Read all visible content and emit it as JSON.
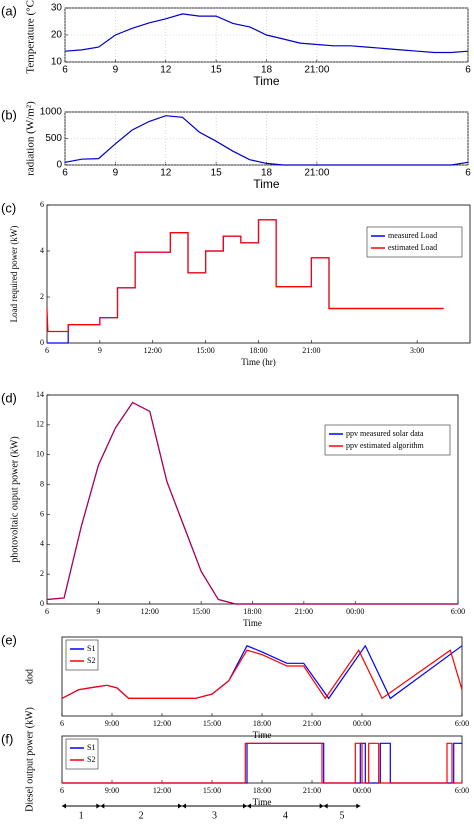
{
  "chart_data": [
    {
      "type": "line",
      "panel_label": "(a)",
      "ylabel": "Temperature (°C)",
      "xlabel": "Time",
      "grid": true,
      "x": [
        6,
        7,
        8,
        9,
        10,
        11,
        12,
        13,
        14,
        15,
        16,
        17,
        18,
        19,
        20,
        21,
        22,
        23,
        24,
        25,
        26,
        27,
        28,
        29,
        30
      ],
      "series": [
        {
          "name": null,
          "color": "#0000cc",
          "values": [
            14,
            14.5,
            15.5,
            20,
            22.5,
            24.5,
            26,
            27.8,
            27,
            27,
            24.3,
            23,
            20,
            18.5,
            17,
            16.5,
            16,
            16,
            15.5,
            15,
            14.5,
            14,
            13.5,
            13.5,
            14
          ]
        }
      ],
      "xlim": [
        6,
        30
      ],
      "xticks": [
        6,
        9,
        12,
        15,
        18,
        {
          "value": 21,
          "label": "21:00"
        },
        {
          "value": 30,
          "label": "6"
        }
      ],
      "ylim": [
        10,
        30
      ],
      "yticks": [
        10,
        20,
        30
      ]
    },
    {
      "type": "line",
      "panel_label": "(b)",
      "ylabel": "radiation (W/m²)",
      "xlabel": "Time",
      "grid": true,
      "x": [
        6,
        7,
        8,
        9,
        10,
        11,
        12,
        13,
        14,
        15,
        16,
        17,
        18,
        19,
        20,
        21,
        22,
        23,
        24,
        25,
        26,
        27,
        28,
        29,
        30
      ],
      "series": [
        {
          "name": null,
          "color": "#0000cc",
          "values": [
            50,
            110,
            120,
            400,
            660,
            820,
            930,
            900,
            620,
            450,
            260,
            100,
            30,
            0,
            0,
            0,
            0,
            0,
            0,
            0,
            0,
            0,
            0,
            0,
            50
          ]
        }
      ],
      "xlim": [
        6,
        30
      ],
      "xticks": [
        6,
        9,
        12,
        15,
        18,
        {
          "value": 21,
          "label": "21:00"
        },
        {
          "value": 30,
          "label": "6"
        }
      ],
      "ylim": [
        0,
        1000
      ],
      "yticks": [
        0,
        500,
        1000
      ]
    },
    {
      "type": "line",
      "panel_label": "(c)",
      "ylabel": "Load required power (kW)",
      "xlabel": "Time (hr)",
      "grid": false,
      "legend": "upper right",
      "series": [
        {
          "name": "measured Load",
          "color": "#0000ff",
          "x": [
            6,
            7.2,
            7.2,
            9,
            9,
            10,
            10,
            11,
            11,
            13,
            13,
            14,
            14,
            15,
            15,
            16,
            16,
            17,
            17,
            18,
            18,
            19,
            19,
            21,
            21,
            22,
            22,
            28.5
          ],
          "values": [
            0,
            0,
            0.8,
            0.8,
            1.1,
            1.1,
            2.4,
            2.4,
            3.95,
            3.95,
            4.8,
            4.8,
            3.05,
            3.05,
            4,
            4,
            4.65,
            4.65,
            4.35,
            4.35,
            5.35,
            5.35,
            2.45,
            2.45,
            3.7,
            3.7,
            1.5,
            1.5
          ]
        },
        {
          "name": "estimated Load",
          "color": "#ff0000",
          "x": [
            6,
            6.05,
            7.2,
            7.2,
            9,
            9,
            10,
            10,
            11,
            11,
            13,
            13,
            14,
            14,
            15,
            15,
            16,
            16,
            17,
            17,
            18,
            18,
            19,
            19,
            21,
            21,
            22,
            22,
            28.5
          ],
          "values": [
            1.5,
            0.5,
            0.5,
            0.8,
            0.8,
            1.1,
            1.1,
            2.4,
            2.4,
            3.95,
            3.95,
            4.8,
            4.8,
            3.05,
            3.05,
            4,
            4,
            4.65,
            4.65,
            4.35,
            4.35,
            5.35,
            5.35,
            2.45,
            2.45,
            3.7,
            3.7,
            1.5,
            1.5
          ]
        }
      ],
      "xlim": [
        6,
        30
      ],
      "xticks": [
        6,
        9,
        {
          "value": 12,
          "label": "12:00"
        },
        {
          "value": 15,
          "label": "15:00"
        },
        {
          "value": 18,
          "label": "18:00"
        },
        {
          "value": 21,
          "label": "21:00"
        },
        {
          "value": 27,
          "label": "3:00"
        }
      ],
      "ylim": [
        0,
        6
      ],
      "yticks": [
        0,
        2,
        4,
        6
      ]
    },
    {
      "type": "line",
      "panel_label": "(d)",
      "ylabel": "photovoltaic ouput power (kW)",
      "xlabel": "Time",
      "grid": false,
      "legend": "upper right",
      "x": [
        6,
        7,
        8,
        9,
        10,
        11,
        12,
        13,
        14,
        15,
        16,
        17,
        18,
        19,
        20,
        21,
        22,
        23,
        24,
        25,
        26,
        27,
        28,
        29,
        30
      ],
      "series": [
        {
          "name": "ppv measured solar data",
          "color": "#0000ff",
          "values": [
            0.3,
            0.4,
            5.2,
            9.3,
            11.8,
            13.5,
            12.9,
            8.2,
            5.2,
            2.2,
            0.3,
            0,
            0,
            0,
            0,
            0,
            0,
            0,
            0,
            0,
            0,
            0,
            0,
            0,
            0
          ]
        },
        {
          "name": "ppv estimated algorithm",
          "color": "#ff0000",
          "values": [
            0.3,
            0.4,
            5.2,
            9.3,
            11.8,
            13.5,
            12.9,
            8.2,
            5.2,
            2.2,
            0.3,
            0,
            0,
            0,
            0,
            0,
            0,
            0,
            0,
            0,
            0,
            0,
            0,
            0,
            0
          ]
        }
      ],
      "xlim": [
        6,
        30
      ],
      "xticks": [
        6,
        9,
        {
          "value": 12,
          "label": "12:00"
        },
        {
          "value": 15,
          "label": "15:00"
        },
        {
          "value": 18,
          "label": "18:00"
        },
        {
          "value": 21,
          "label": "21:00"
        },
        {
          "value": 24,
          "label": "00:00"
        },
        {
          "value": 30,
          "label": "6:00"
        }
      ],
      "ylim": [
        0,
        14
      ],
      "yticks": [
        0,
        2,
        4,
        6,
        8,
        10,
        12,
        14
      ]
    },
    {
      "type": "line",
      "panel_label": "(e)",
      "ylabel": "dod",
      "xlabel": "Time",
      "grid": false,
      "legend": "upper left",
      "series": [
        {
          "name": "S1",
          "color": "#0000ff",
          "x": [
            6,
            7,
            8,
            8.7,
            9.3,
            10,
            14,
            15,
            16,
            17.1,
            18,
            19.5,
            20.5,
            22,
            24.2,
            25.7,
            30
          ],
          "values": [
            0.2,
            0.3,
            0.33,
            0.35,
            0.32,
            0.2,
            0.2,
            0.25,
            0.4,
            0.8,
            0.73,
            0.6,
            0.6,
            0.2,
            0.8,
            0.2,
            0.8
          ]
        },
        {
          "name": "S2",
          "color": "#ff0000",
          "x": [
            6,
            7,
            8,
            8.7,
            9.3,
            10,
            14,
            15,
            16,
            17.1,
            18,
            19.5,
            20.5,
            21.8,
            23.8,
            25.2,
            29.3,
            30
          ],
          "values": [
            0.2,
            0.3,
            0.33,
            0.35,
            0.32,
            0.2,
            0.2,
            0.25,
            0.4,
            0.75,
            0.7,
            0.57,
            0.57,
            0.2,
            0.75,
            0.2,
            0.75,
            0.3
          ]
        }
      ],
      "xlim": [
        6,
        30
      ],
      "xticks": [
        6,
        {
          "value": 9,
          "label": "9:00"
        },
        {
          "value": 12,
          "label": "12:00"
        },
        {
          "value": 15,
          "label": "15:00"
        },
        {
          "value": 18,
          "label": "18:00"
        },
        {
          "value": 21,
          "label": "21:00"
        },
        {
          "value": 24,
          "label": "00:00"
        },
        {
          "value": 30,
          "label": "6:00"
        }
      ],
      "ylim": [
        0,
        0.9
      ]
    },
    {
      "type": "line",
      "panel_label": "(f)",
      "ylabel": "Diesel output power (kW)",
      "xlabel": "Time",
      "grid": false,
      "legend": "upper left",
      "series": [
        {
          "name": "S1",
          "color": "#0000ff",
          "x": [
            6,
            17.1,
            17.1,
            21.7,
            21.7,
            23.9,
            23.9,
            24.2,
            24.2,
            25.1,
            25.1,
            25.7,
            25.7,
            29.5,
            29.5,
            30
          ],
          "values": [
            0,
            0,
            13.5,
            13.5,
            0,
            0,
            13.5,
            13.5,
            0,
            0,
            13.5,
            13.5,
            0,
            0,
            13.5,
            13.5
          ]
        },
        {
          "name": "S2",
          "color": "#ff0000",
          "x": [
            6,
            17,
            17,
            21.6,
            21.6,
            23.6,
            23.6,
            24,
            24,
            24.4,
            24.4,
            25,
            25,
            29.1,
            29.1,
            29.4,
            29.4,
            30
          ],
          "values": [
            0,
            0,
            13.5,
            13.5,
            0,
            0,
            13.5,
            13.5,
            0,
            0,
            13.5,
            13.5,
            0,
            0,
            13.5,
            13.5,
            0,
            0
          ]
        }
      ],
      "xlim": [
        6,
        30
      ],
      "xticks": [
        6,
        {
          "value": 9,
          "label": "9:00"
        },
        {
          "value": 12,
          "label": "12:00"
        },
        {
          "value": 15,
          "label": "15:00"
        },
        {
          "value": 18,
          "label": "18:00"
        },
        {
          "value": 21,
          "label": "21:00"
        },
        {
          "value": 24,
          "label": "00:00"
        },
        {
          "value": 30,
          "label": "6:00"
        }
      ],
      "ylim": [
        0,
        16
      ],
      "intervals": [
        {
          "label": "1",
          "start": 6,
          "end": 8.3
        },
        {
          "label": "2",
          "start": 8.3,
          "end": 13.2
        },
        {
          "label": "3",
          "start": 13.2,
          "end": 17.1
        },
        {
          "label": "4",
          "start": 17.1,
          "end": 21.7
        },
        {
          "label": "5",
          "start": 21.7,
          "end": 23.9
        }
      ]
    }
  ]
}
